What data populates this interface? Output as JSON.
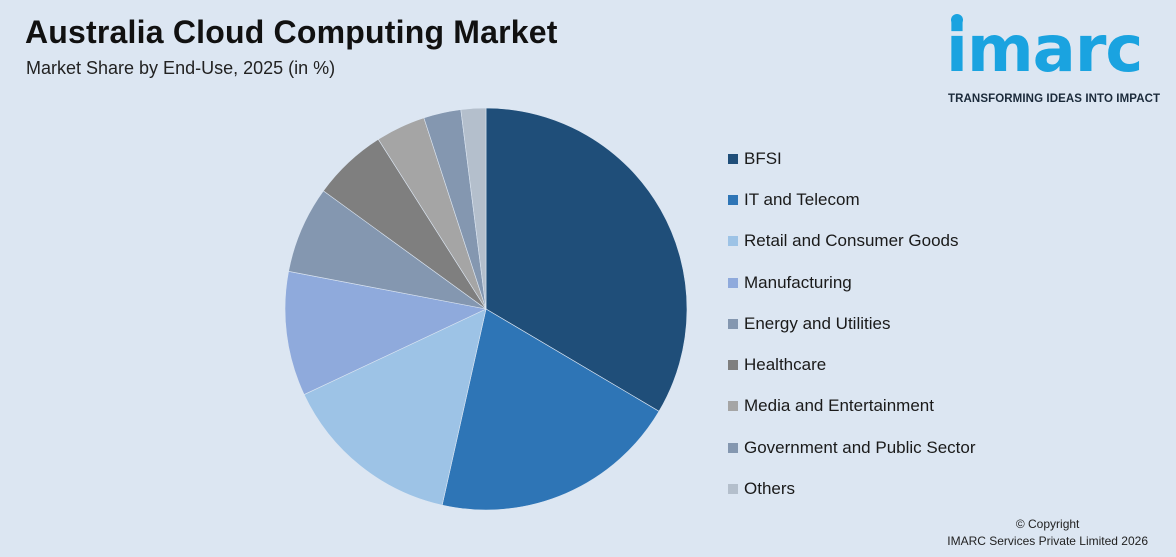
{
  "header": {
    "title": "Australia Cloud Computing Market",
    "subtitle": "Market Share by End-Use, 2025 (in %)"
  },
  "logo": {
    "wordmark": "imarc",
    "tagline": "TRANSFORMING IDEAS INTO IMPACT",
    "color": "#1aa3e0"
  },
  "chart_data": {
    "type": "pie",
    "title": "Australia Cloud Computing Market",
    "subtitle": "Market Share by End-Use, 2025 (in %)",
    "start": "12 o'clock, clockwise",
    "legend_position": "right",
    "slices": [
      {
        "label": "BFSI",
        "value": 33.5,
        "color": "#1f4e79"
      },
      {
        "label": "IT and Telecom",
        "value": 20.0,
        "color": "#2e75b6"
      },
      {
        "label": "Retail and Consumer Goods",
        "value": 14.5,
        "color": "#9dc3e6"
      },
      {
        "label": "Manufacturing",
        "value": 10.0,
        "color": "#8faadc"
      },
      {
        "label": "Energy and Utilities",
        "value": 7.0,
        "color": "#8497b0"
      },
      {
        "label": "Healthcare",
        "value": 6.0,
        "color": "#7f7f7f"
      },
      {
        "label": "Media and Entertainment",
        "value": 4.0,
        "color": "#a5a5a5"
      },
      {
        "label": "Government and Public Sector",
        "value": 3.0,
        "color": "#8497b0"
      },
      {
        "label": "Others",
        "value": 2.0,
        "color": "#b4bfcc"
      }
    ]
  },
  "footer": {
    "copyright_line1": "© Copyright",
    "copyright_line2": "IMARC Services Private Limited 2026"
  }
}
